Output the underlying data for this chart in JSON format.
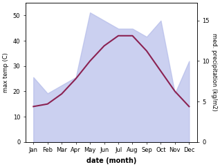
{
  "months": [
    "Jan",
    "Feb",
    "Mar",
    "Apr",
    "May",
    "Jun",
    "Jul",
    "Aug",
    "Sep",
    "Oct",
    "Nov",
    "Dec"
  ],
  "temp": [
    14,
    15,
    19,
    25,
    32,
    38,
    42,
    42,
    36,
    28,
    20,
    14
  ],
  "precip": [
    8,
    6,
    7,
    8,
    16,
    15,
    14,
    14,
    13,
    15,
    6,
    10
  ],
  "temp_ylim": [
    0,
    55
  ],
  "precip_ylim": [
    0,
    17.19
  ],
  "temp_yticks": [
    0,
    10,
    20,
    30,
    40,
    50
  ],
  "precip_yticks": [
    0,
    5,
    10,
    15
  ],
  "fill_color": "#b0b8e8",
  "fill_alpha": 0.65,
  "line_color": "#8b2252",
  "line_width": 1.5,
  "xlabel": "date (month)",
  "ylabel_left": "max temp (C)",
  "ylabel_right": "med. precipitation (kg/m2)",
  "bg_color": "#ffffff",
  "tick_fontsize": 6,
  "label_fontsize": 6,
  "xlabel_fontsize": 7
}
